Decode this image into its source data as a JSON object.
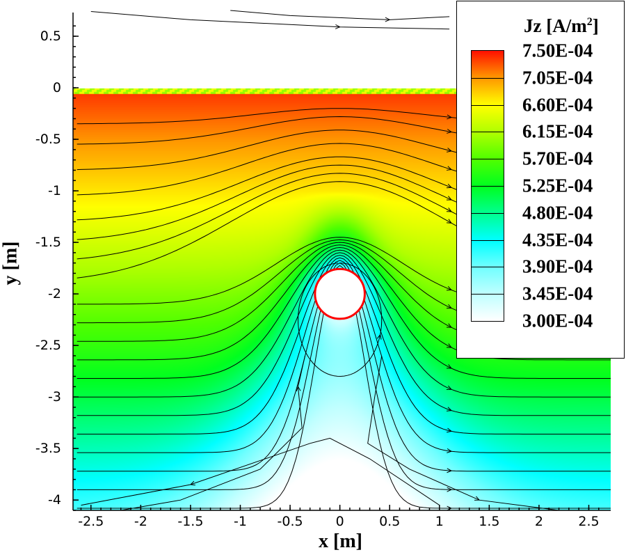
{
  "chart_data": {
    "type": "heatmap",
    "subtype": "filled contour with streamlines",
    "xlabel": "x [m]",
    "ylabel": "y [m]",
    "xlim": [
      -2.68,
      2.72
    ],
    "ylim": [
      -4.1,
      0.73
    ],
    "xticks": [
      "-2.5",
      "-2",
      "-1.5",
      "-1",
      "-0.5",
      "0",
      "0.5",
      "1",
      "1.5",
      "2",
      "2.5"
    ],
    "xtick_values": [
      -2.5,
      -2,
      -1.5,
      -1,
      -0.5,
      0,
      0.5,
      1,
      1.5,
      2,
      2.5
    ],
    "yticks": [
      "0.5",
      "0",
      "-0.5",
      "-1",
      "-1.5",
      "-2",
      "-2.5",
      "-3",
      "-3.5",
      "-4"
    ],
    "ytick_values": [
      0.5,
      0,
      -0.5,
      -1,
      -1.5,
      -2,
      -2.5,
      -3,
      -3.5,
      -4
    ],
    "colorbar": {
      "title": "Jz [A/m",
      "title_sup": "2",
      "title_end": "]",
      "levels": [
        "7.50E-04",
        "7.05E-04",
        "6.60E-04",
        "6.15E-04",
        "5.70E-04",
        "5.25E-04",
        "4.80E-04",
        "4.35E-04",
        "3.90E-04",
        "3.45E-04",
        "3.00E-04"
      ],
      "level_values": [
        0.00075,
        0.000705,
        0.00066,
        0.000615,
        0.00057,
        0.000525,
        0.00048,
        0.000435,
        0.00039,
        0.000345,
        0.0003
      ],
      "colors": [
        "#ff1000",
        "#ff9900",
        "#ffff00",
        "#b0ff00",
        "#50ff00",
        "#00ff20",
        "#00ff90",
        "#00ffff",
        "#70ffff",
        "#c0ffff",
        "#ffffff"
      ],
      "placement": "top-right"
    },
    "obstacle": {
      "shape": "circle",
      "center": [
        0,
        -2
      ],
      "radius": 0.25,
      "outline_color": "#ff0000"
    },
    "ground_surface_y": 0
  }
}
